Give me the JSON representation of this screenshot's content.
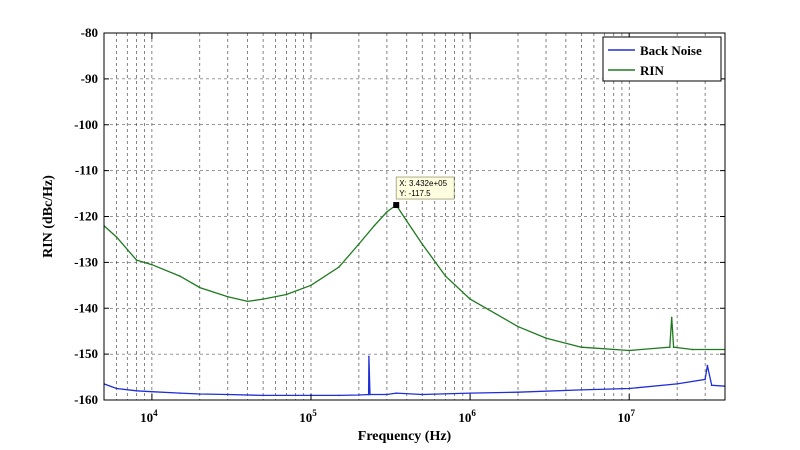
{
  "chart_data": {
    "type": "line",
    "title": "",
    "xlabel": "Frequency (Hz)",
    "ylabel": "RIN (dBc/Hz)",
    "xscale": "log",
    "xlim": [
      5000,
      40000000
    ],
    "ylim": [
      -160,
      -80
    ],
    "yticks": [
      "-80",
      "-90",
      "-100",
      "-110",
      "-120",
      "-130",
      "-140",
      "-150",
      "-160"
    ],
    "xticks": [
      {
        "base": "10",
        "exp": "4",
        "value": 10000
      },
      {
        "base": "10",
        "exp": "5",
        "value": 100000
      },
      {
        "base": "10",
        "exp": "6",
        "value": 1000000
      },
      {
        "base": "10",
        "exp": "7",
        "value": 10000000
      }
    ],
    "grid": true,
    "legend_position": "top-right",
    "colors": {
      "back_noise": "#1f2fd6",
      "rin": "#1f7a1f"
    },
    "series": [
      {
        "name": "Back Noise",
        "color": "#1f2fd6",
        "x": [
          5000,
          6000,
          8000,
          10000,
          15000,
          20000,
          30000,
          50000,
          80000,
          100000,
          150000,
          200000,
          230000,
          231000,
          235000,
          300000,
          343200,
          500000,
          1000000,
          2000000,
          5000000,
          10000000,
          20000000,
          30000000,
          31000000,
          33000000,
          40000000
        ],
        "y": [
          -156.5,
          -157.5,
          -158,
          -158.2,
          -158.5,
          -158.7,
          -158.8,
          -159,
          -159,
          -159,
          -159,
          -158.9,
          -158.8,
          -150.5,
          -158.8,
          -158.8,
          -158.5,
          -158.8,
          -158.5,
          -158.3,
          -157.8,
          -157.5,
          -156.5,
          -155.5,
          -152.5,
          -156.8,
          -157
        ]
      },
      {
        "name": "RIN",
        "color": "#1f7a1f",
        "x": [
          5000,
          6000,
          8000,
          10000,
          15000,
          20000,
          30000,
          40000,
          50000,
          70000,
          100000,
          150000,
          200000,
          250000,
          300000,
          343200,
          400000,
          500000,
          700000,
          1000000,
          2000000,
          3000000,
          5000000,
          10000000,
          18000000,
          18500000,
          19000000,
          25000000,
          40000000
        ],
        "y": [
          -122,
          -124.5,
          -129.5,
          -130.5,
          -133,
          -135.5,
          -137.5,
          -138.5,
          -138,
          -137,
          -135,
          -131,
          -126,
          -122,
          -119,
          -117.5,
          -121,
          -126,
          -133,
          -138,
          -144,
          -146.5,
          -148.5,
          -149.2,
          -148.5,
          -142,
          -148.5,
          -149,
          -149
        ]
      }
    ],
    "datatip": {
      "x_label": "X: 3.432e+05",
      "y_label": "Y: -117.5",
      "x": 343200,
      "y": -117.5
    }
  }
}
